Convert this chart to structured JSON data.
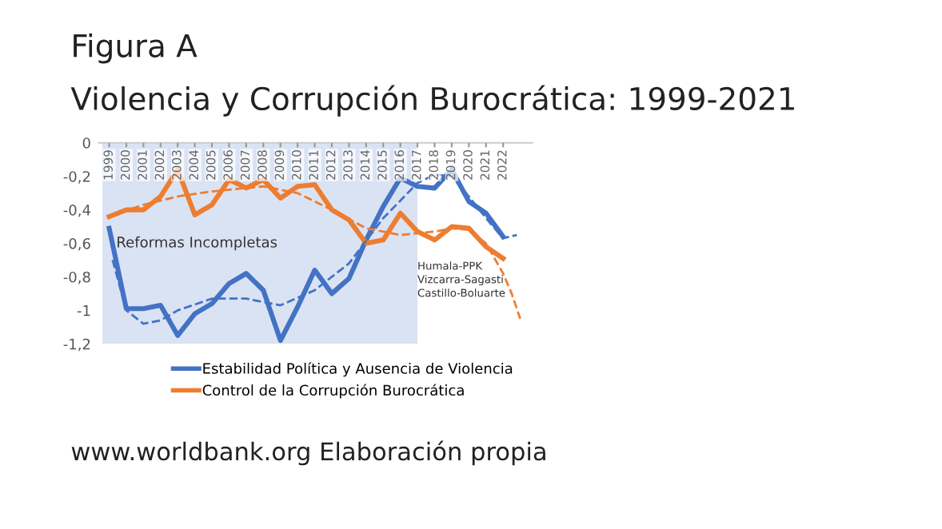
{
  "chart_data": {
    "type": "line",
    "title": "Figura A",
    "subtitle": "Violencia y Corrupción Burocrática: 1999-2021",
    "x": [
      1999,
      2000,
      2001,
      2002,
      2003,
      2004,
      2005,
      2006,
      2007,
      2008,
      2009,
      2010,
      2011,
      2012,
      2013,
      2014,
      2015,
      2016,
      2017,
      2018,
      2019,
      2020,
      2021,
      2022
    ],
    "series": [
      {
        "name": "Estabilidad Política y Ausencia de Violencia",
        "color": "#4472c4",
        "values": [
          -0.51,
          -0.99,
          -0.99,
          -0.97,
          -1.15,
          -1.02,
          -0.96,
          -0.84,
          -0.78,
          -0.88,
          -1.18,
          -0.98,
          -0.76,
          -0.9,
          -0.81,
          -0.58,
          -0.38,
          -0.21,
          -0.26,
          -0.27,
          -0.16,
          -0.35,
          -0.42,
          -0.56
        ]
      },
      {
        "name": "Control de la Corrupción Burocrática",
        "color": "#ed7d31",
        "values": [
          -0.44,
          -0.4,
          -0.4,
          -0.32,
          -0.16,
          -0.43,
          -0.37,
          -0.22,
          -0.27,
          -0.22,
          -0.33,
          -0.26,
          -0.25,
          -0.4,
          -0.46,
          -0.6,
          -0.58,
          -0.42,
          -0.53,
          -0.58,
          -0.5,
          -0.51,
          -0.62,
          -0.69
        ]
      },
      {
        "type": "line",
        "line_style": "dashed",
        "color": "#4472c4",
        "x": [
          1999.2,
          2000,
          2001,
          2002,
          2003,
          2005,
          2007,
          2009,
          2011,
          2013,
          2015,
          2017,
          2018,
          2019,
          2020,
          2021,
          2022,
          2022.8
        ],
        "values": [
          -0.7,
          -1.0,
          -1.08,
          -1.06,
          -1.0,
          -0.93,
          -0.93,
          -0.97,
          -0.88,
          -0.72,
          -0.45,
          -0.24,
          -0.19,
          -0.2,
          -0.32,
          -0.45,
          -0.57,
          -0.55
        ]
      },
      {
        "type": "line",
        "line_style": "dashed",
        "color": "#ed7d31",
        "x": [
          1999,
          2001,
          2003,
          2005,
          2007,
          2008,
          2010,
          2012,
          2014,
          2016,
          2018,
          2019,
          2020,
          2021,
          2022,
          2022.5,
          2023
        ],
        "values": [
          -0.44,
          -0.37,
          -0.32,
          -0.29,
          -0.27,
          -0.26,
          -0.3,
          -0.4,
          -0.51,
          -0.55,
          -0.53,
          -0.51,
          -0.52,
          -0.6,
          -0.78,
          -0.9,
          -1.05
        ]
      }
    ],
    "xlim": [
      1998.4,
      2023.7
    ],
    "xticks": [
      1999,
      2000,
      2001,
      2002,
      2003,
      2004,
      2005,
      2006,
      2007,
      2008,
      2009,
      2010,
      2011,
      2012,
      2013,
      2014,
      2015,
      2016,
      2017,
      2018,
      2019,
      2020,
      2021,
      2022
    ],
    "ylim": [
      -1.2,
      0
    ],
    "yticks": [
      {
        "value": -1.2,
        "label": "-1,2"
      },
      {
        "value": -1,
        "label": "-1"
      },
      {
        "value": -0.8,
        "label": "-0,8"
      },
      {
        "value": -0.6,
        "label": "-0,6"
      },
      {
        "value": -0.4,
        "label": "-0,4"
      },
      {
        "value": -0.2,
        "label": "-0,2"
      },
      {
        "value": 0,
        "label": "0"
      }
    ],
    "bands": [
      {
        "axis": "x",
        "from": 1998.6,
        "to": 2017.0,
        "label": "Reformas Incompletas",
        "color": "#dae3f3"
      }
    ],
    "annotations": [
      "Humala-PPK\nVizcarra-Sagasti\nCastillo-Boluarte",
      "www.worldbank.org Elaboración propia"
    ],
    "legend": "bottom",
    "grid": false,
    "marker": "none",
    "line_style": "solid"
  }
}
